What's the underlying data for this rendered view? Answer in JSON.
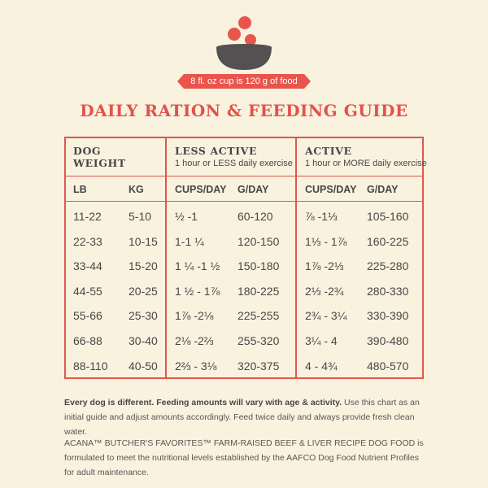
{
  "header": {
    "cup_note": "8 fl. oz cup is 120 g of food",
    "title": "DAILY RATION & FEEDING GUIDE"
  },
  "colors": {
    "accent": "#e2534b",
    "background": "#f8f2df",
    "text": "#4a4646",
    "bowl": "#555052"
  },
  "table": {
    "groups": {
      "weight": {
        "title_line1": "DOG",
        "title_line2": "WEIGHT"
      },
      "less_active": {
        "title": "LESS ACTIVE",
        "subtitle": "1 hour or LESS daily exercise"
      },
      "active": {
        "title": "ACTIVE",
        "subtitle": "1 hour or MORE daily exercise"
      }
    },
    "columns": [
      "LB",
      "KG",
      "CUPS/DAY",
      "G/DAY",
      "CUPS/DAY",
      "G/DAY"
    ],
    "rows": [
      [
        "11-22",
        "5-10",
        "½ -1",
        "60-120",
        "⅞ -1⅓",
        "105-160"
      ],
      [
        "22-33",
        "10-15",
        "1-1 ¼",
        "120-150",
        "1⅓ - 1⅞",
        "160-225"
      ],
      [
        "33-44",
        "15-20",
        "1 ¼ -1 ½",
        "150-180",
        "1⅞ -2⅓",
        "225-280"
      ],
      [
        "44-55",
        "20-25",
        "1 ½ - 1⅞",
        "180-225",
        "2⅓ -2¾",
        "280-330"
      ],
      [
        "55-66",
        "25-30",
        "1⅞ -2⅛",
        "225-255",
        "2¾ - 3¼",
        "330-390"
      ],
      [
        "66-88",
        "30-40",
        "2⅛ -2⅔",
        "255-320",
        "3¼ - 4",
        "390-480"
      ],
      [
        "88-110",
        "40-50",
        "2⅔ - 3⅛",
        "320-375",
        "4 - 4¾",
        "480-570"
      ]
    ]
  },
  "notes": {
    "lead_bold": "Every dog is different. Feeding amounts will vary with age & activity.",
    "lead_rest": " Use this chart as an initial guide and adjust amounts accordingly. Feed twice daily and always provide fresh clean water.",
    "aafco": "ACANA™ BUTCHER'S FAVORITES™ FARM-RAISED BEEF & LIVER RECIPE DOG FOOD is formulated to meet the nutritional levels established by the AAFCO Dog Food Nutrient Profiles for adult maintenance."
  }
}
